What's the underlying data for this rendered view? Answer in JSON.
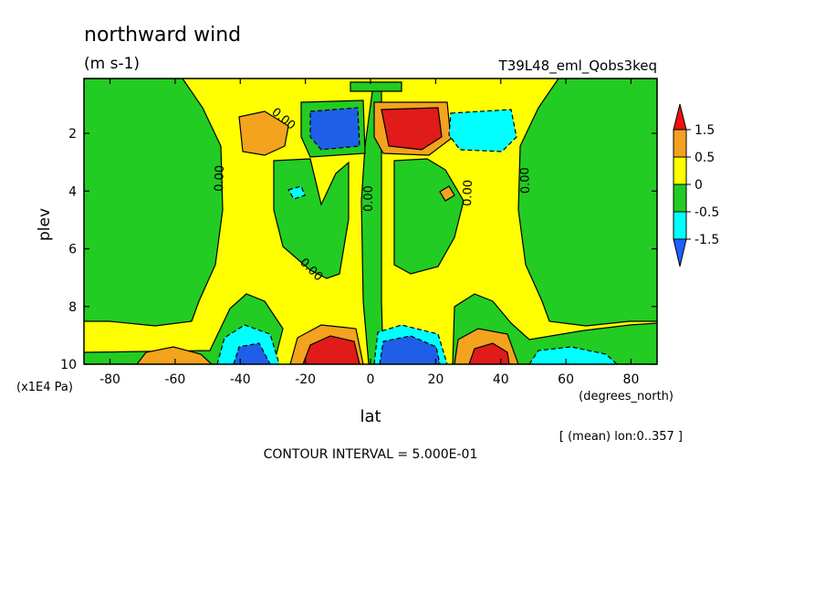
{
  "chart_data": {
    "type": "contour",
    "title": "northward wind",
    "units": "(m s-1)",
    "run_name": "T39L48_eml_Qobs3keq",
    "xlabel": "lat",
    "x_units": "(degrees_north)",
    "ylabel": "plev",
    "y_units": "(x1E4 Pa)",
    "x_ticks": [
      -80,
      -60,
      -40,
      -20,
      0,
      20,
      40,
      60,
      80
    ],
    "x_tick_labels": [
      "-80",
      "-60",
      "-40",
      "-20",
      "0",
      "20",
      "40",
      "60",
      "80"
    ],
    "y_ticks": [
      2,
      4,
      6,
      8,
      10
    ],
    "y_tick_labels": [
      "2",
      "4",
      "6",
      "8",
      "10"
    ],
    "xlim": [
      -88,
      88
    ],
    "ylim": [
      10,
      0.1
    ],
    "y_inverted": true,
    "subset_note": "[ (mean) lon:0..357 ]",
    "contour_interval_text": "CONTOUR INTERVAL = 5.000E-01",
    "contour_labels": [
      "0.00",
      "0.00",
      "0.00",
      "0.00",
      "0.00",
      "0.00",
      "0.00"
    ],
    "colorbar": {
      "labels": [
        "1.5",
        "0.5",
        "0",
        "-0.5",
        "-1.5"
      ],
      "colors": [
        "#ee1111",
        "#f4a020",
        "#ffff00",
        "#22cc22",
        "#00ffff",
        "#2060ff"
      ]
    },
    "colors": {
      "strong_pos": "#e11a1a",
      "pos": "#f3a31d",
      "weak_pos": "#ffff00",
      "weak_neg": "#22cc22",
      "neg": "#00ffff",
      "strong_neg": "#1f5fe8"
    },
    "features": [
      {
        "lat": 10,
        "plev": 1.8,
        "value": 2.5,
        "sign": "positive"
      },
      {
        "lat": -10,
        "plev": 1.8,
        "value": -2.0,
        "sign": "negative"
      },
      {
        "lat": -10,
        "plev": 9.7,
        "value": 3.0,
        "sign": "positive"
      },
      {
        "lat": 10,
        "plev": 9.7,
        "value": -2.5,
        "sign": "negative"
      },
      {
        "lat": 35,
        "plev": 9.6,
        "value": 2.0,
        "sign": "positive"
      },
      {
        "lat": -37,
        "plev": 9.7,
        "value": -1.5,
        "sign": "negative"
      },
      {
        "lat": -60,
        "plev": 9.8,
        "value": 0.8,
        "sign": "positive"
      },
      {
        "lat": -38,
        "plev": 2.0,
        "value": 0.7,
        "sign": "positive"
      },
      {
        "lat": 38,
        "plev": 2.0,
        "value": -0.8,
        "sign": "negative"
      }
    ]
  }
}
